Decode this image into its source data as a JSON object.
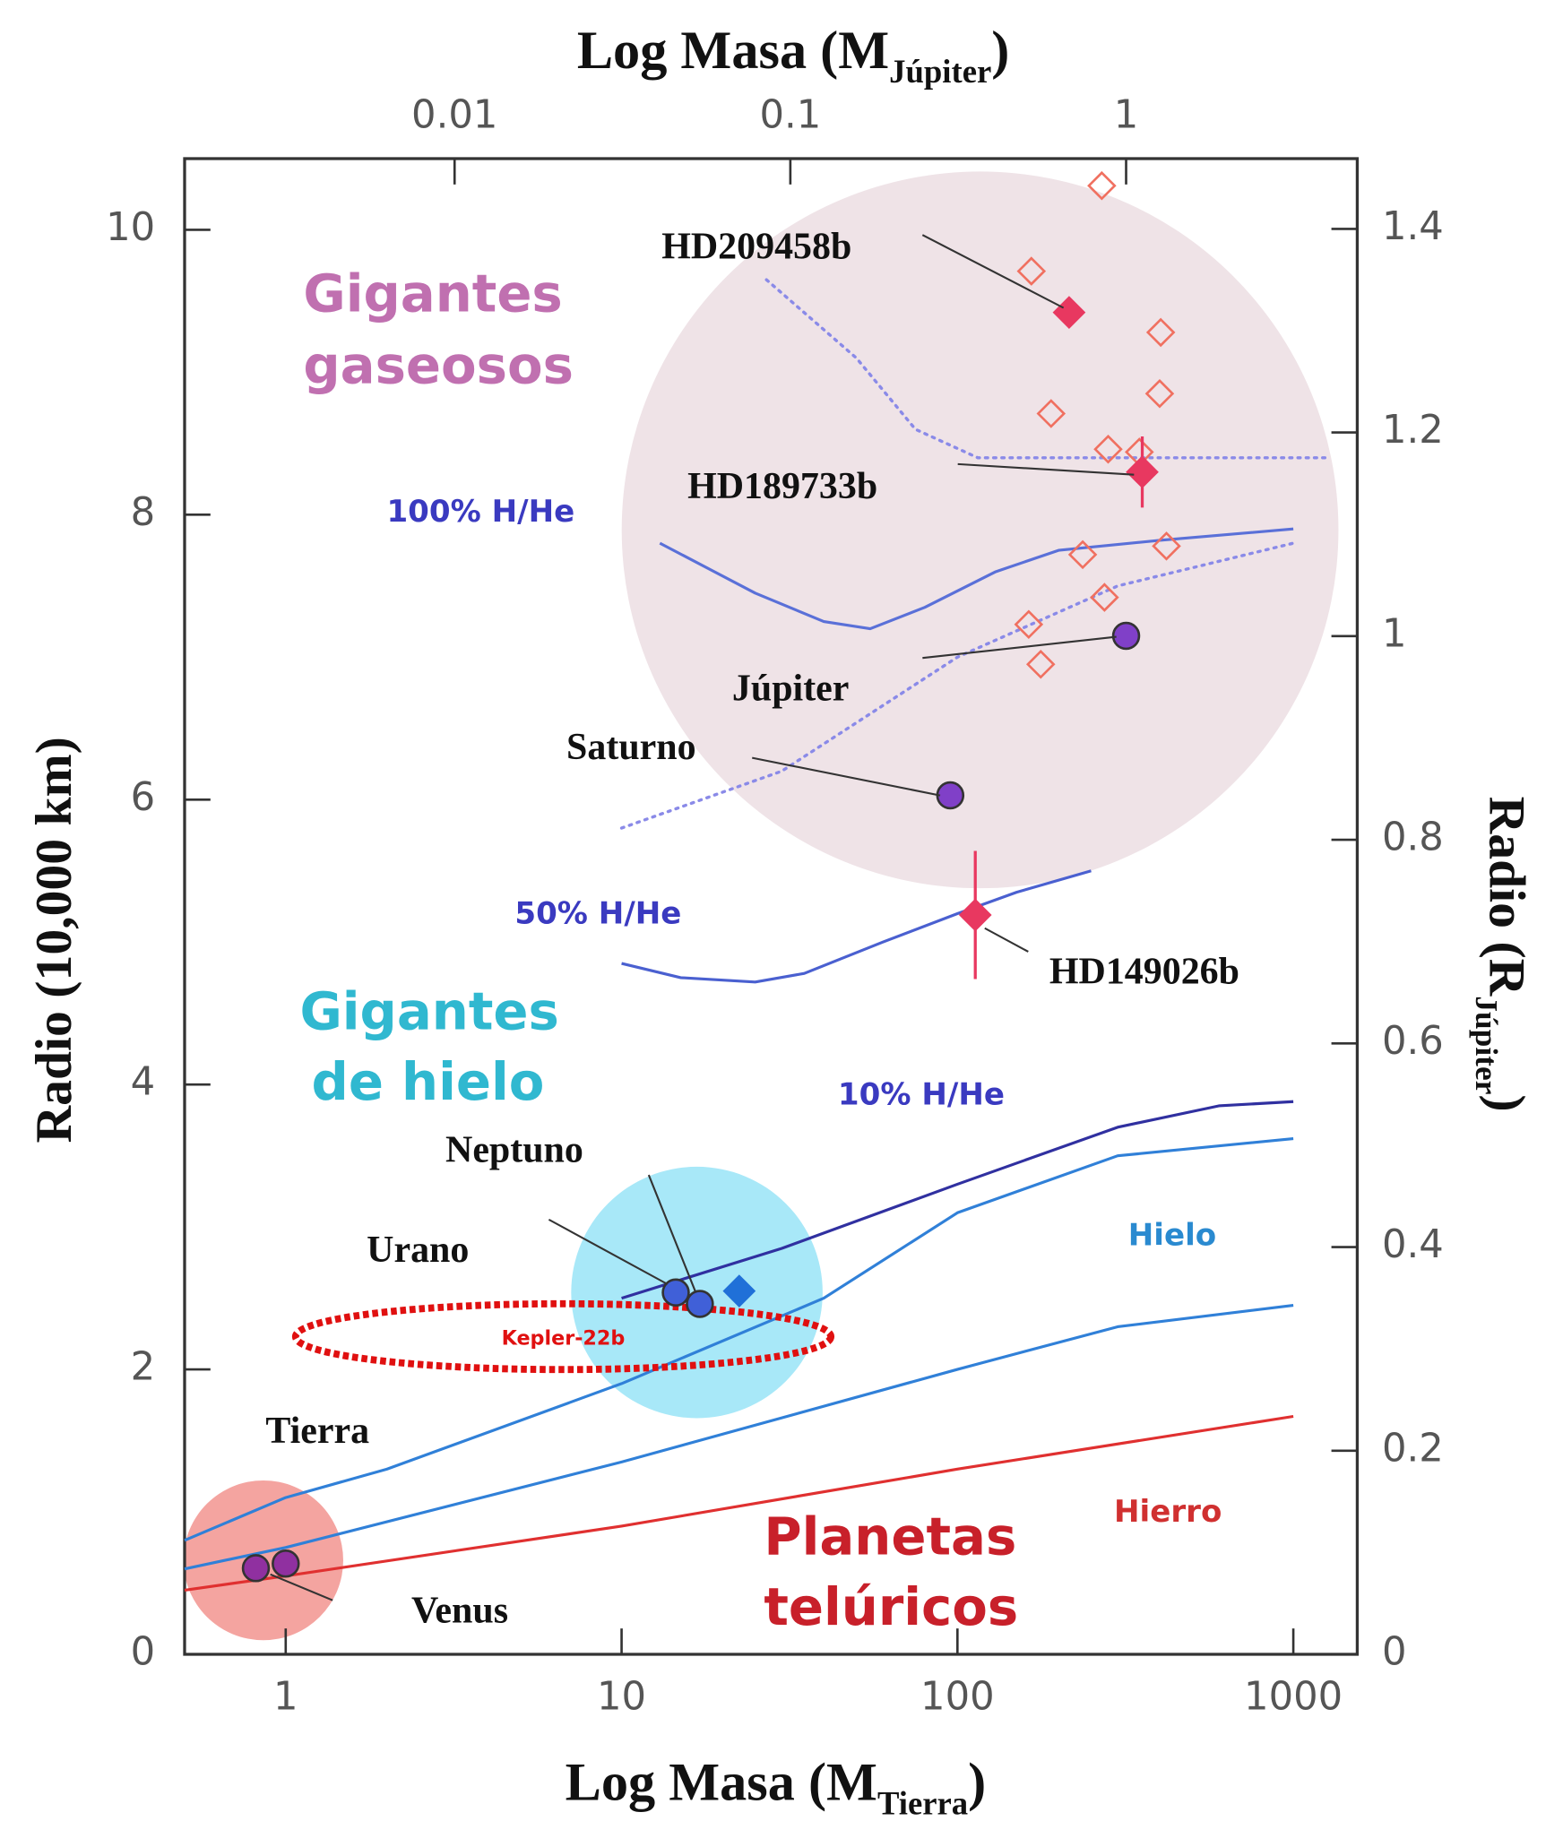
{
  "chart_data": {
    "type": "scatter",
    "xscale": "log",
    "xlim": [
      0.5,
      1550
    ],
    "xticks": [
      1,
      10,
      100,
      1000
    ],
    "x2lim": [
      0.00157,
      4.88
    ],
    "x2ticks": [
      0.01,
      0.1,
      1
    ],
    "ylim": [
      0,
      10.5
    ],
    "yticks": [
      0,
      2,
      4,
      6,
      8,
      10
    ],
    "y2lim": [
      0,
      1.469
    ],
    "y2ticks": [
      0,
      0.2,
      0.4,
      0.6,
      0.8,
      1,
      1.2,
      1.4
    ],
    "x_label": {
      "text": "Log Masa (M",
      "sub": "Tierra",
      "end": ")"
    },
    "x2_label": {
      "text": "Log Masa (M",
      "sub": "Júpiter",
      "end": ")"
    },
    "y_label": "Radio (10,000 km)",
    "y2_label": {
      "text": "Radio (R",
      "sub": "Júpiter",
      "end": ")"
    },
    "regions": [
      {
        "lines": [
          "Gigantes",
          "gaseosos"
        ],
        "color": "#c070b0"
      },
      {
        "lines": [
          "Gigantes",
          "de hielo"
        ],
        "color": "#30b8d0"
      },
      {
        "lines": [
          "Planetas",
          "telúricos"
        ],
        "color": "#c8202a"
      }
    ],
    "lines": [
      {
        "name": "100% H/He",
        "color": "#5a70d8",
        "style": "solid",
        "x": [
          13,
          25,
          40,
          55,
          80,
          130,
          200,
          400,
          1000
        ],
        "y": [
          7.8,
          7.45,
          7.25,
          7.2,
          7.35,
          7.6,
          7.75,
          7.82,
          7.9
        ]
      },
      {
        "name": "50% H/He",
        "color": "#4a60d0",
        "style": "solid",
        "x": [
          10,
          15,
          25,
          35,
          60,
          100,
          150,
          250
        ],
        "y": [
          4.85,
          4.75,
          4.72,
          4.78,
          5.0,
          5.2,
          5.35,
          5.5
        ]
      },
      {
        "name": "10% H/He",
        "color": "#3030a0",
        "style": "solid",
        "x": [
          10,
          30,
          100,
          300,
          600,
          1000
        ],
        "y": [
          2.5,
          2.85,
          3.3,
          3.7,
          3.85,
          3.88
        ]
      },
      {
        "name": "Hielo",
        "color": "#3080d8",
        "style": "solid",
        "x": [
          0.5,
          1,
          2,
          10,
          40,
          100,
          300,
          1000
        ],
        "y": [
          0.8,
          1.1,
          1.3,
          1.9,
          2.5,
          3.1,
          3.5,
          3.62
        ]
      },
      {
        "color": "#3080d8",
        "style": "solid",
        "x": [
          0.5,
          1,
          10,
          100,
          300,
          1000
        ],
        "y": [
          0.6,
          0.75,
          1.35,
          2.0,
          2.3,
          2.45
        ]
      },
      {
        "name": "Hierro",
        "color": "#e03030",
        "style": "solid",
        "x": [
          0.5,
          1,
          10,
          100,
          1000
        ],
        "y": [
          0.45,
          0.55,
          0.9,
          1.3,
          1.67
        ]
      },
      {
        "color": "#8a8ae8",
        "style": "dotted",
        "x": [
          27,
          50,
          75,
          115,
          400,
          1260
        ],
        "y": [
          9.65,
          9.1,
          8.6,
          8.4,
          8.4,
          8.4
        ]
      },
      {
        "color": "#8a8ae8",
        "style": "dotted",
        "x": [
          10,
          30,
          100,
          300,
          1000
        ],
        "y": [
          5.8,
          6.2,
          7.0,
          7.5,
          7.8
        ]
      }
    ],
    "points": [
      {
        "name": "HD209458b",
        "x": 215,
        "y": 9.42,
        "shape": "diamond",
        "color": "#e83860"
      },
      {
        "name": "HD189733b",
        "x": 355,
        "y": 8.3,
        "error": 0.25,
        "shape": "diamond",
        "color": "#e83860"
      },
      {
        "name": "Júpiter",
        "x": 317.8,
        "y": 7.15,
        "shape": "circle",
        "color": "#8040c8"
      },
      {
        "name": "Saturno",
        "x": 95.2,
        "y": 6.03,
        "shape": "circle",
        "color": "#8040c8"
      },
      {
        "name": "HD149026b",
        "x": 113,
        "y": 5.19,
        "error": 0.45,
        "shape": "diamond",
        "color": "#e83860"
      },
      {
        "name": "Neptuno",
        "x": 17.1,
        "y": 2.46,
        "shape": "circle",
        "color": "#4060d8"
      },
      {
        "name": "Urano",
        "x": 14.5,
        "y": 2.54,
        "shape": "circle",
        "color": "#4060d8"
      },
      {
        "name": "Tierra",
        "x": 1,
        "y": 0.637,
        "shape": "circle",
        "color": "#9030a0"
      },
      {
        "name": "Venus",
        "x": 0.815,
        "y": 0.605,
        "shape": "circle",
        "color": "#9030a0"
      },
      {
        "x": 22.4,
        "y": 2.55,
        "shape": "diamond",
        "color": "#2070d8"
      }
    ],
    "open_diamonds": {
      "color": "#f07060",
      "x": [
        269,
        166,
        403,
        190,
        400,
        281,
        348,
        419,
        236,
        274,
        163,
        177
      ],
      "y": [
        10.31,
        9.71,
        9.28,
        8.71,
        8.85,
        8.46,
        8.44,
        7.78,
        7.72,
        7.42,
        7.23,
        6.95
      ]
    },
    "kepler": {
      "text": "Kepler-22b",
      "x": [
        1.07,
        42
      ],
      "y": 2.23,
      "color": "#e01010"
    }
  }
}
